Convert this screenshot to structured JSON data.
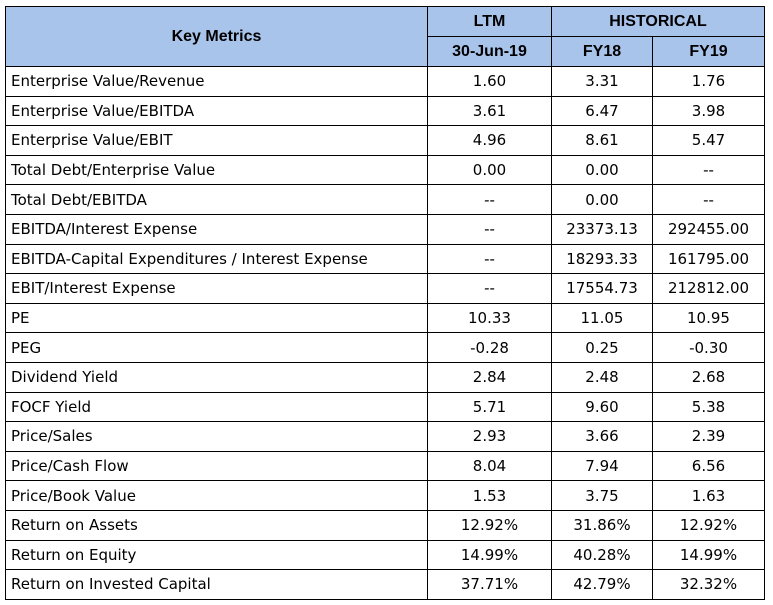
{
  "header": {
    "key_metrics": "Key Metrics",
    "ltm": "LTM",
    "historical": "HISTORICAL",
    "ltm_date": "30-Jun-19",
    "fy18": "FY18",
    "fy19": "FY19"
  },
  "rows": [
    {
      "label": "Enterprise Value/Revenue",
      "ltm": "1.60",
      "fy18": "3.31",
      "fy19": "1.76"
    },
    {
      "label": "Enterprise Value/EBITDA",
      "ltm": "3.61",
      "fy18": "6.47",
      "fy19": "3.98"
    },
    {
      "label": "Enterprise Value/EBIT",
      "ltm": "4.96",
      "fy18": "8.61",
      "fy19": "5.47"
    },
    {
      "label": "Total Debt/Enterprise Value",
      "ltm": "0.00",
      "fy18": "0.00",
      "fy19": "--"
    },
    {
      "label": "Total Debt/EBITDA",
      "ltm": "--",
      "fy18": "0.00",
      "fy19": "--"
    },
    {
      "label": "EBITDA/Interest Expense",
      "ltm": "--",
      "fy18": "23373.13",
      "fy19": "292455.00"
    },
    {
      "label": "EBITDA-Capital Expenditures / Interest Expense",
      "ltm": "--",
      "fy18": "18293.33",
      "fy19": "161795.00"
    },
    {
      "label": "EBIT/Interest Expense",
      "ltm": "--",
      "fy18": "17554.73",
      "fy19": "212812.00"
    },
    {
      "label": "PE",
      "ltm": "10.33",
      "fy18": "11.05",
      "fy19": "10.95"
    },
    {
      "label": "PEG",
      "ltm": "-0.28",
      "fy18": "0.25",
      "fy19": "-0.30"
    },
    {
      "label": "Dividend Yield",
      "ltm": "2.84",
      "fy18": "2.48",
      "fy19": "2.68"
    },
    {
      "label": "FOCF Yield",
      "ltm": "5.71",
      "fy18": "9.60",
      "fy19": "5.38"
    },
    {
      "label": "Price/Sales",
      "ltm": "2.93",
      "fy18": "3.66",
      "fy19": "2.39"
    },
    {
      "label": "Price/Cash Flow",
      "ltm": "8.04",
      "fy18": "7.94",
      "fy19": "6.56"
    },
    {
      "label": "Price/Book Value",
      "ltm": "1.53",
      "fy18": "3.75",
      "fy19": "1.63"
    },
    {
      "label": "Return on Assets",
      "ltm": "12.92%",
      "fy18": "31.86%",
      "fy19": "12.92%"
    },
    {
      "label": "Return on Equity",
      "ltm": "14.99%",
      "fy18": "40.28%",
      "fy19": "14.99%"
    },
    {
      "label": "Return on Invested Capital",
      "ltm": "37.71%",
      "fy18": "42.79%",
      "fy19": "32.32%"
    }
  ],
  "colors": {
    "header_background": "#a9c4eb",
    "border": "#000000"
  }
}
